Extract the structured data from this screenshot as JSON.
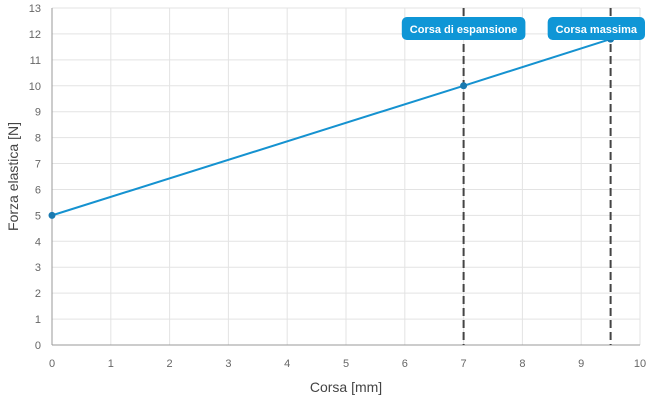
{
  "chart_data": {
    "type": "line",
    "title": "",
    "xlabel": "Corsa [mm]",
    "ylabel": "Forza elastica [N]",
    "xlim": [
      0,
      10
    ],
    "ylim": [
      0,
      13
    ],
    "x_ticks": [
      0,
      1,
      2,
      3,
      4,
      5,
      6,
      7,
      8,
      9,
      10
    ],
    "y_ticks": [
      0,
      1,
      2,
      3,
      4,
      5,
      6,
      7,
      8,
      9,
      10,
      11,
      12,
      13
    ],
    "grid": true,
    "series": [
      {
        "x": [
          0,
          7,
          9.5
        ],
        "y": [
          5,
          10,
          11.8
        ]
      }
    ],
    "annotations": [
      {
        "label": "Corsa di espansione",
        "x": 7
      },
      {
        "label": "Corsa massima",
        "x": 9.5
      }
    ]
  },
  "colors": {
    "line": "#1592d0",
    "point": "#1a7ab0",
    "badge": "#0f96d6",
    "grid": "#e3e3e3",
    "axis": "#999999",
    "vline": "#444444"
  }
}
